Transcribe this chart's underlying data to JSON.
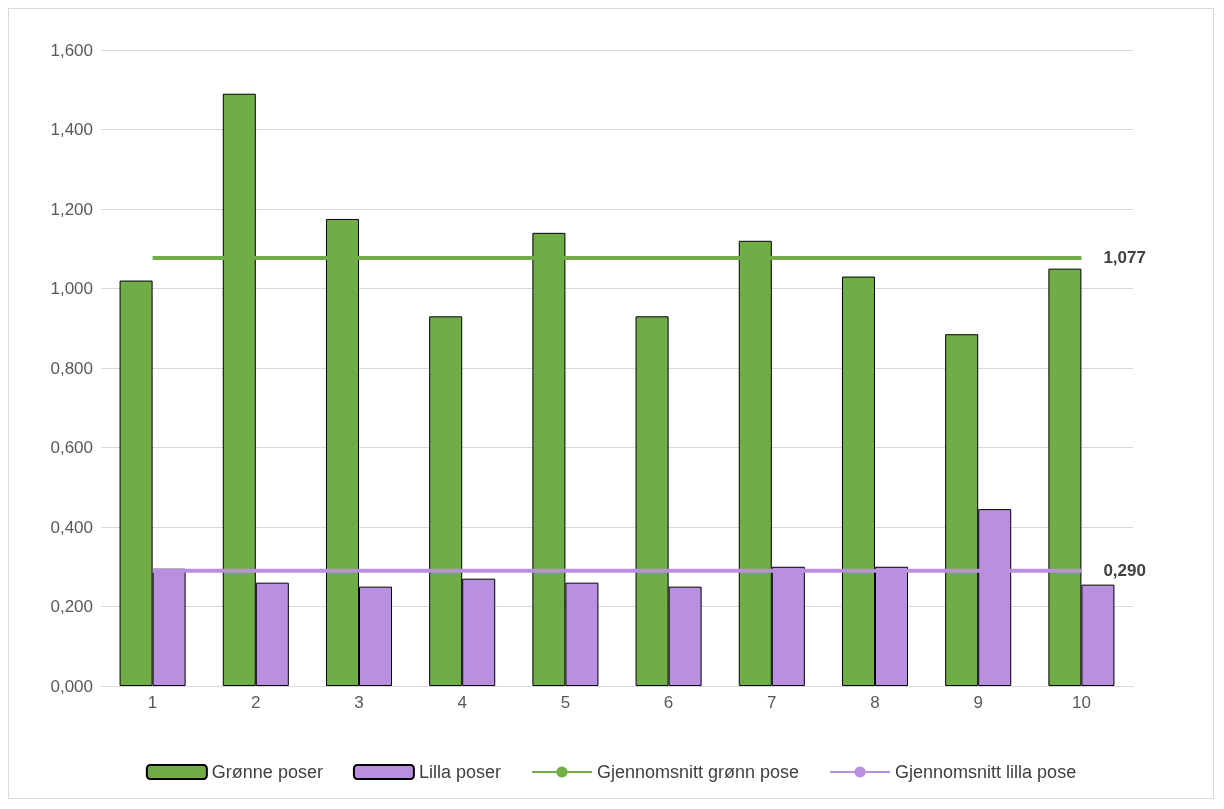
{
  "chart_data": {
    "type": "bar",
    "categories": [
      "1",
      "2",
      "3",
      "4",
      "5",
      "6",
      "7",
      "8",
      "9",
      "10"
    ],
    "series": [
      {
        "name": "Grønne poser",
        "color": "#70ad47",
        "values": [
          1.02,
          1.49,
          1.175,
          0.93,
          1.14,
          0.93,
          1.12,
          1.03,
          0.885,
          1.05
        ]
      },
      {
        "name": "Lilla poser",
        "color": "#b98fdf",
        "values": [
          0.295,
          0.26,
          0.25,
          0.27,
          0.26,
          0.25,
          0.3,
          0.3,
          0.445,
          0.255
        ]
      },
      {
        "name": "Gjennomsnitt grønn pose",
        "type": "line",
        "color": "#70ad47",
        "values": [
          1.077,
          1.077,
          1.077,
          1.077,
          1.077,
          1.077,
          1.077,
          1.077,
          1.077,
          1.077
        ],
        "value_labels": [
          null,
          null,
          null,
          null,
          null,
          null,
          null,
          null,
          null,
          "1,077"
        ]
      },
      {
        "name": "Gjennomsnitt lilla pose",
        "type": "line",
        "color": "#b98fdf",
        "values": [
          0.29,
          0.29,
          0.29,
          0.29,
          0.29,
          0.29,
          0.29,
          0.29,
          0.29,
          0.29
        ],
        "value_labels": [
          null,
          null,
          null,
          null,
          null,
          null,
          null,
          null,
          null,
          "0,290"
        ]
      }
    ],
    "ylim": [
      0,
      1.6
    ],
    "yticks": [
      {
        "value": 0,
        "label": "0,000"
      },
      {
        "value": 0.2,
        "label": "0,200"
      },
      {
        "value": 0.4,
        "label": "0,400"
      },
      {
        "value": 0.6,
        "label": "0,600"
      },
      {
        "value": 0.8,
        "label": "0,800"
      },
      {
        "value": 1,
        "label": "1,000"
      },
      {
        "value": 1.2,
        "label": "1,200"
      },
      {
        "value": 1.4,
        "label": "1,400"
      },
      {
        "value": 1.6,
        "label": "1,600"
      }
    ],
    "grid": "y",
    "legend": "bottom",
    "marker": "none"
  }
}
